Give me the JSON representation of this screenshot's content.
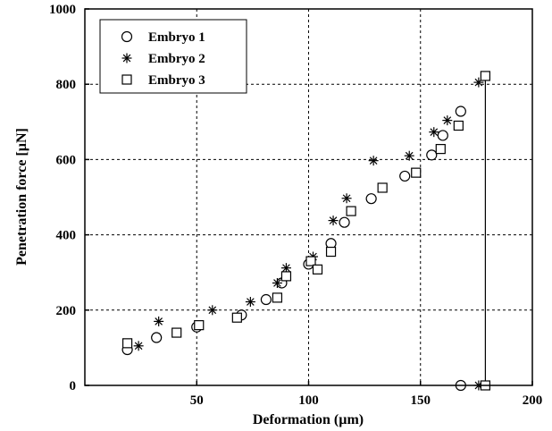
{
  "chart_data": {
    "type": "scatter",
    "title": "",
    "xlabel": "Deformation (µm)",
    "ylabel": "Penetration force [µN]",
    "xlim": [
      0,
      200
    ],
    "ylim": [
      0,
      1000
    ],
    "xticks": [
      50,
      100,
      150,
      200
    ],
    "yticks": [
      0,
      200,
      400,
      600,
      800,
      1000
    ],
    "grid": true,
    "legend_position": "top-left",
    "series": [
      {
        "name": "Embryo 1",
        "marker": "circle",
        "points": [
          [
            19,
            95
          ],
          [
            32,
            127
          ],
          [
            50,
            155
          ],
          [
            70,
            187
          ],
          [
            81,
            228
          ],
          [
            88,
            272
          ],
          [
            100,
            322
          ],
          [
            110,
            377
          ],
          [
            116,
            433
          ],
          [
            128,
            496
          ],
          [
            143,
            556
          ],
          [
            155,
            612
          ],
          [
            160,
            664
          ],
          [
            168,
            728
          ],
          [
            168,
            0
          ]
        ]
      },
      {
        "name": "Embryo 2",
        "marker": "asterisk",
        "points": [
          [
            24,
            105
          ],
          [
            33,
            170
          ],
          [
            57,
            200
          ],
          [
            74,
            222
          ],
          [
            86,
            272
          ],
          [
            90,
            312
          ],
          [
            102,
            342
          ],
          [
            111,
            438
          ],
          [
            117,
            497
          ],
          [
            129,
            597
          ],
          [
            145,
            610
          ],
          [
            156,
            673
          ],
          [
            162,
            704
          ],
          [
            176,
            805
          ],
          [
            176,
            0
          ]
        ]
      },
      {
        "name": "Embryo 3",
        "marker": "square",
        "points": [
          [
            19,
            112
          ],
          [
            41,
            140
          ],
          [
            51,
            160
          ],
          [
            68,
            180
          ],
          [
            86,
            233
          ],
          [
            90,
            290
          ],
          [
            101,
            330
          ],
          [
            104,
            308
          ],
          [
            110,
            355
          ],
          [
            119,
            463
          ],
          [
            133,
            525
          ],
          [
            148,
            565
          ],
          [
            159,
            628
          ],
          [
            167,
            690
          ],
          [
            179,
            822
          ],
          [
            179,
            0
          ]
        ]
      }
    ],
    "vertical_line": {
      "x": 179,
      "y_from": 0,
      "y_to": 822
    }
  }
}
